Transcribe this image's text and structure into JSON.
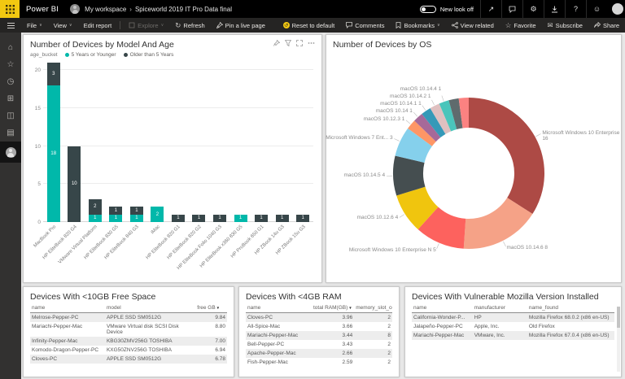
{
  "topbar": {
    "brand": "Power BI",
    "breadcrumb_workspace": "My workspace",
    "breadcrumb_sep": "›",
    "breadcrumb_report": "Spiceworld 2019 IT Pro Data final",
    "new_look_label": "New look off",
    "icons": [
      "share-arrow",
      "comments-bubble",
      "settings-gear",
      "download",
      "help",
      "feedback-smiley",
      "account-avatar"
    ]
  },
  "menubar": {
    "file": "File",
    "view": "View",
    "edit_report": "Edit report",
    "explore": "Explore",
    "refresh": "Refresh",
    "pin_live": "Pin a live page",
    "reset": "Reset to default",
    "comments": "Comments",
    "bookmarks": "Bookmarks",
    "view_related": "View related",
    "favorite": "Favorite",
    "subscribe": "Subscribe",
    "share": "Share"
  },
  "sidebar": {
    "icons": [
      "hamburger",
      "home",
      "favorites-star",
      "recent-clock",
      "apps-grid",
      "shared-with-me",
      "workspaces",
      "my-workspace-avatar"
    ]
  },
  "panel_icons": [
    "pin-visual",
    "filter-funnel",
    "focus-mode",
    "more-options"
  ],
  "chart_data": [
    {
      "type": "bar",
      "stacked": true,
      "title": "Number of Devices by Model And Age",
      "legend_title": "age_bucket",
      "legend_position": "top",
      "grid": true,
      "categories": [
        "MacBook Pro",
        "HP EliteBook 820 G4",
        "VMware Virtual Platform",
        "HP EliteBook 830 G5",
        "HP EliteBook 840 G3",
        "iMac",
        "HP EliteBook 820 G1",
        "HP EliteBook 820 G2",
        "HP EliteBook Folio 1040 G3",
        "HP EliteBook x360 830 G5",
        "HP ProBook 650 G1",
        "HP ZBook 14u G3",
        "HP ZBook 15u G3"
      ],
      "series": [
        {
          "name": "5 Years or Younger",
          "color": "#01b8aa",
          "values": [
            18,
            0,
            1,
            1,
            1,
            2,
            0,
            0,
            0,
            1,
            0,
            0,
            0
          ]
        },
        {
          "name": "Older than 5 Years",
          "color": "#374649",
          "values": [
            3,
            10,
            2,
            1,
            1,
            0,
            1,
            1,
            1,
            0,
            1,
            1,
            1
          ]
        }
      ],
      "yticks": [
        0,
        5,
        10,
        15,
        20
      ],
      "ymax": 21
    },
    {
      "type": "donut",
      "title": "Number of Devices by OS",
      "slices": [
        {
          "label": "Microsoft Windows 10 Enterprise",
          "value": 16,
          "color": "#ad4a45"
        },
        {
          "label": "macOS 10.14.6",
          "value": 8,
          "color": "#f5a287"
        },
        {
          "label": "Microsoft Windows 10 Enterprise N",
          "value": 5,
          "color": "#fd625e"
        },
        {
          "label": "macOS 10.12.6",
          "value": 4,
          "color": "#f0c50e"
        },
        {
          "label": "macOS 10.14.5",
          "value": 4,
          "color": "#454e50"
        },
        {
          "label": "Microsoft Windows 7 Ent...",
          "value": 3,
          "color": "#85d0ec"
        },
        {
          "label": "macOS 10.12.3",
          "value": 1,
          "color": "#fe9666"
        },
        {
          "label": "macOS 10.14",
          "value": 1,
          "color": "#a66999"
        },
        {
          "label": "macOS 10.14.1",
          "value": 1,
          "color": "#3599b8"
        },
        {
          "label": "macOS 10.14.2",
          "value": 1,
          "color": "#dfc0c0"
        },
        {
          "label": "macOS 10.14.4",
          "value": 1,
          "color": "#4ac5bb"
        },
        {
          "label": "",
          "value": 1,
          "color": "#5f6b6d"
        },
        {
          "label": "",
          "value": 1,
          "color": "#fb8281"
        }
      ]
    }
  ],
  "tables": [
    {
      "title": "Devices With <10GB Free Space",
      "columns": [
        "name",
        "model",
        "free GB"
      ],
      "sort_col": 2,
      "rows": [
        [
          "Melrose-Pepper-PC",
          "APPLE SSD SM0512G",
          "9.84"
        ],
        [
          "Mariachi-Pepper-Mac",
          "VMware Virtual disk SCSI Disk Device",
          "8.80"
        ],
        [
          "Infinity-Pepper-Mac",
          "KBG30ZMV256G TOSHIBA",
          "7.00"
        ],
        [
          "Komodo-Dragon-Pepper-PC",
          "KXG50ZNV256G TOSHIBA",
          "6.94"
        ],
        [
          "Cloves-PC",
          "APPLE SSD SM0512G",
          "6.78"
        ]
      ]
    },
    {
      "title": "Devices With <4GB RAM",
      "columns": [
        "name",
        "total RAM(GB)",
        "memory_slot_count"
      ],
      "sort_col": 1,
      "rows": [
        [
          "Cloves-PC",
          "3.96",
          "2"
        ],
        [
          "All-Spice-Mac",
          "3.66",
          "2"
        ],
        [
          "Mariachi-Pepper-Mac",
          "3.44",
          "8"
        ],
        [
          "Bell-Pepper-PC",
          "3.43",
          "2"
        ],
        [
          "Apache-Pepper-Mac",
          "2.66",
          "2"
        ],
        [
          "Fish-Pepper-Mac",
          "2.59",
          "2"
        ]
      ]
    },
    {
      "title": "Devices With Vulnerable Mozilla Version Installed",
      "columns": [
        "name",
        "manufacturer",
        "name_found"
      ],
      "sort_col": -1,
      "rows": [
        [
          "California-Wonder-P...",
          "HP",
          "Mozilla Firefox 68.0.2 (x86 en-US)"
        ],
        [
          "Jalapeño-Pepper-PC",
          "Apple, Inc.",
          "Old Firefox"
        ],
        [
          "Mariachi-Pepper-Mac",
          "VMware, Inc.",
          "Mozilla Firefox 67.0.4 (x86 en-US)"
        ]
      ]
    }
  ]
}
